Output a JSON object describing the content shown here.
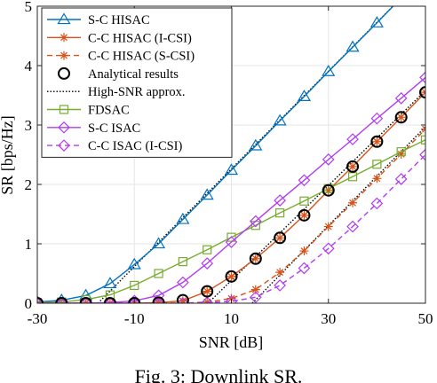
{
  "chart_data": {
    "type": "line",
    "xlabel": "SNR [dB]",
    "ylabel": "SR [bps/Hz]",
    "xlim": [
      -30,
      50
    ],
    "ylim": [
      0,
      5
    ],
    "xticks": [
      -30,
      -10,
      10,
      30,
      50
    ],
    "yticks": [
      0,
      1,
      2,
      3,
      4,
      5
    ],
    "xtick_labels": [
      "-30",
      "-10",
      "10",
      "30",
      "50"
    ],
    "ytick_labels": [
      "0",
      "1",
      "2",
      "3",
      "4",
      "5"
    ],
    "grid": true,
    "legend_position": "top-left",
    "series": [
      {
        "name": "S-C HISAC",
        "color": "#0072BD",
        "dash": "",
        "marker": "triangle",
        "x": [
          -30,
          -25,
          -20,
          -15,
          -10,
          -5,
          0,
          5,
          10,
          15,
          20,
          25,
          30,
          35,
          40,
          45,
          50
        ],
        "y": [
          0.02,
          0.05,
          0.13,
          0.33,
          0.65,
          1.0,
          1.41,
          1.82,
          2.24,
          2.65,
          3.07,
          3.48,
          3.9,
          4.31,
          4.72,
          5.14,
          5.55
        ]
      },
      {
        "name": "C-C HISAC (I-CSI)",
        "color": "#D95319",
        "dash": "",
        "marker": "star",
        "x": [
          -30,
          -25,
          -20,
          -15,
          -10,
          -5,
          0,
          5,
          10,
          15,
          20,
          25,
          30,
          35,
          40,
          45,
          50
        ],
        "y": [
          0.0,
          0.0,
          0.0,
          0.0,
          0.0,
          0.01,
          0.04,
          0.2,
          0.45,
          0.75,
          1.1,
          1.48,
          1.9,
          2.3,
          2.72,
          3.13,
          3.55
        ]
      },
      {
        "name": "C-C HISAC (S-CSI)",
        "color": "#D95319",
        "dash": "6,4",
        "marker": "star",
        "x": [
          -30,
          -25,
          -20,
          -15,
          -10,
          -5,
          0,
          5,
          10,
          15,
          20,
          25,
          30,
          35,
          40,
          45,
          50
        ],
        "y": [
          0.0,
          0.0,
          0.0,
          0.0,
          0.0,
          0.0,
          0.0,
          0.02,
          0.08,
          0.23,
          0.52,
          0.88,
          1.29,
          1.69,
          2.1,
          2.51,
          2.93
        ]
      },
      {
        "name": "Analytical results",
        "color": "#000000",
        "dash": "none",
        "marker": "circle",
        "x": [
          -30,
          -25,
          -20,
          -15,
          -10,
          -5,
          0,
          5,
          10,
          15,
          20,
          25,
          30,
          35,
          40,
          45,
          50
        ],
        "y": [
          0.0,
          0.0,
          0.0,
          0.0,
          0.0,
          0.01,
          0.05,
          0.2,
          0.45,
          0.75,
          1.1,
          1.48,
          1.9,
          2.3,
          2.72,
          3.13,
          3.55
        ]
      },
      {
        "name": "High-SNR approx.",
        "color": "#000000",
        "dash": "1.5,2",
        "marker": "none",
        "segments": [
          {
            "x": [
              -17.5,
              50
            ],
            "y": [
              0,
              5.55
            ]
          },
          {
            "x": [
              5.2,
              50
            ],
            "y": [
              0,
              3.58
            ]
          },
          {
            "x": [
              14.3,
              50
            ],
            "y": [
              0,
              2.97
            ]
          }
        ]
      },
      {
        "name": "FDSAC",
        "color": "#77AC30",
        "dash": "",
        "marker": "square",
        "x": [
          -30,
          -25,
          -20,
          -15,
          -10,
          -5,
          0,
          5,
          10,
          15,
          20,
          25,
          30,
          35,
          40,
          45,
          50
        ],
        "y": [
          0.01,
          0.02,
          0.06,
          0.14,
          0.3,
          0.5,
          0.7,
          0.9,
          1.11,
          1.31,
          1.52,
          1.72,
          1.93,
          2.13,
          2.34,
          2.55,
          2.75
        ]
      },
      {
        "name": "S-C ISAC",
        "color": "#B23CF0",
        "dash": "",
        "marker": "diamond",
        "x": [
          -30,
          -25,
          -20,
          -15,
          -10,
          -5,
          0,
          5,
          10,
          15,
          20,
          25,
          30,
          35,
          40,
          45,
          50
        ],
        "y": [
          0.0,
          0.0,
          0.0,
          0.01,
          0.04,
          0.13,
          0.35,
          0.67,
          1.03,
          1.38,
          1.73,
          2.07,
          2.42,
          2.76,
          3.11,
          3.45,
          3.8
        ]
      },
      {
        "name": "C-C ISAC (I-CSI)",
        "color": "#B23CF0",
        "dash": "6,4",
        "marker": "diamond",
        "x": [
          -30,
          -25,
          -20,
          -15,
          -10,
          -5,
          0,
          5,
          10,
          15,
          20,
          25,
          30,
          35,
          40,
          45,
          50
        ],
        "y": [
          0.0,
          0.0,
          0.0,
          0.0,
          0.0,
          0.0,
          0.0,
          0.01,
          0.03,
          0.1,
          0.3,
          0.59,
          0.92,
          1.29,
          1.68,
          2.09,
          2.5
        ]
      }
    ]
  },
  "caption": "Fig. 3: Downlink SR."
}
